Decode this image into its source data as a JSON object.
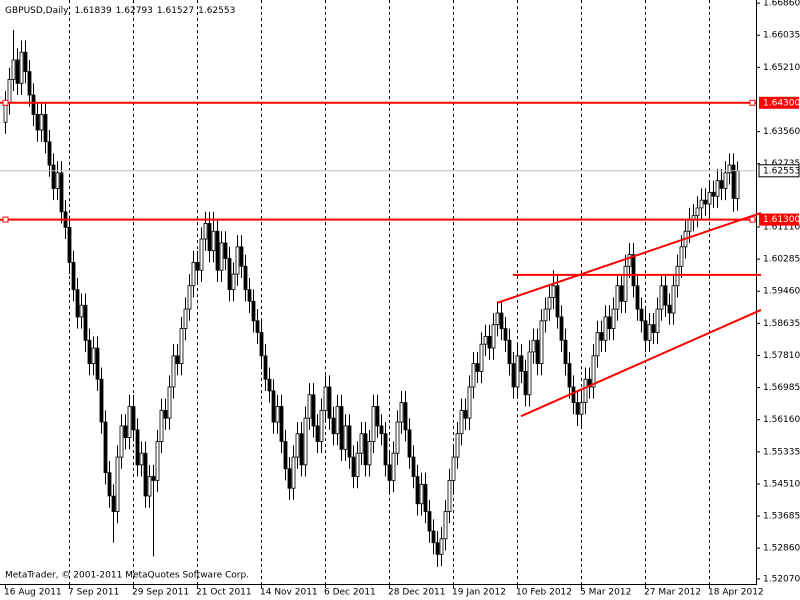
{
  "chart_data": {
    "type": "candlestick",
    "symbol": "GBPUSD,Daily",
    "footer": "MetaTrader, © 2001-2011 MetaQuotes Software Corp.",
    "categories": [
      "16 Aug 2011",
      null,
      null,
      null,
      null,
      null,
      null,
      null,
      null,
      null,
      null,
      null,
      null,
      null,
      null,
      null,
      "7 Sep 2011",
      null,
      null,
      null,
      null,
      null,
      null,
      null,
      null,
      null,
      null,
      null,
      null,
      null,
      null,
      null,
      "29 Sep 2011",
      null,
      null,
      null,
      null,
      null,
      null,
      null,
      null,
      null,
      null,
      null,
      null,
      null,
      null,
      null,
      "21 Oct 2011",
      null,
      null,
      null,
      null,
      null,
      null,
      null,
      null,
      null,
      null,
      null,
      null,
      null,
      null,
      null,
      "14 Nov 2011",
      null,
      null,
      null,
      null,
      null,
      null,
      null,
      null,
      null,
      null,
      null,
      null,
      null,
      null,
      null,
      "6 Dec 2011",
      null,
      null,
      null,
      null,
      null,
      null,
      null,
      null,
      null,
      null,
      null,
      null,
      null,
      null,
      null,
      "28 Dec 2011",
      null,
      null,
      null,
      null,
      null,
      null,
      null,
      null,
      null,
      null,
      null,
      null,
      null,
      null,
      null,
      "19 Jan 2012",
      null,
      null,
      null,
      null,
      null,
      null,
      null,
      null,
      null,
      null,
      null,
      null,
      null,
      null,
      null,
      "10 Feb 2012",
      null,
      null,
      null,
      null,
      null,
      null,
      null,
      null,
      null,
      null,
      null,
      null,
      null,
      null,
      null,
      "5 Mar 2012",
      null,
      null,
      null,
      null,
      null,
      null,
      null,
      null,
      null,
      null,
      null,
      null,
      null,
      null,
      null,
      "27 Mar 2012",
      null,
      null,
      null,
      null,
      null,
      null,
      null,
      null,
      null,
      null,
      null,
      null,
      null,
      null,
      null,
      "18 Apr 2012",
      null,
      null,
      null,
      null,
      null,
      null,
      null
    ],
    "candles": [
      [
        1.638,
        1.646,
        1.635,
        1.643
      ],
      [
        1.643,
        1.652,
        1.64,
        1.649
      ],
      [
        1.649,
        1.6617,
        1.646,
        1.654
      ],
      [
        1.654,
        1.657,
        1.645,
        1.648
      ],
      [
        1.648,
        1.659,
        1.645,
        1.656
      ],
      [
        1.656,
        1.659,
        1.648,
        1.651
      ],
      [
        1.651,
        1.654,
        1.642,
        1.645
      ],
      [
        1.645,
        1.648,
        1.637,
        1.64
      ],
      [
        1.64,
        1.643,
        1.633,
        1.636
      ],
      [
        1.636,
        1.643,
        1.633,
        1.64
      ],
      [
        1.64,
        1.643,
        1.63,
        1.633
      ],
      [
        1.633,
        1.636,
        1.624,
        1.627
      ],
      [
        1.627,
        1.63,
        1.618,
        1.621
      ],
      [
        1.621,
        1.628,
        1.618,
        1.625
      ],
      [
        1.625,
        1.628,
        1.612,
        1.615
      ],
      [
        1.615,
        1.618,
        1.608,
        1.611
      ],
      [
        1.611,
        1.614,
        1.599,
        1.602
      ],
      [
        1.602,
        1.605,
        1.592,
        1.595
      ],
      [
        1.595,
        1.598,
        1.585,
        1.588
      ],
      [
        1.588,
        1.594,
        1.585,
        1.591
      ],
      [
        1.591,
        1.594,
        1.579,
        1.582
      ],
      [
        1.582,
        1.585,
        1.573,
        1.576
      ],
      [
        1.576,
        1.583,
        1.573,
        1.58
      ],
      [
        1.58,
        1.583,
        1.569,
        1.572
      ],
      [
        1.572,
        1.575,
        1.558,
        1.561
      ],
      [
        1.561,
        1.564,
        1.545,
        1.548
      ],
      [
        1.548,
        1.551,
        1.539,
        1.542
      ],
      [
        1.542,
        1.545,
        1.53,
        1.538
      ],
      [
        1.538,
        1.555,
        1.535,
        1.552
      ],
      [
        1.552,
        1.563,
        1.549,
        1.56
      ],
      [
        1.56,
        1.563,
        1.554,
        1.557
      ],
      [
        1.557,
        1.568,
        1.554,
        1.565
      ],
      [
        1.565,
        1.568,
        1.556,
        1.559
      ],
      [
        1.559,
        1.562,
        1.547,
        1.55
      ],
      [
        1.55,
        1.556,
        1.547,
        1.553
      ],
      [
        1.553,
        1.556,
        1.539,
        1.542
      ],
      [
        1.542,
        1.55,
        1.539,
        1.547
      ],
      [
        1.547,
        1.55,
        1.5265,
        1.546
      ],
      [
        1.546,
        1.559,
        1.543,
        1.556
      ],
      [
        1.556,
        1.567,
        1.553,
        1.564
      ],
      [
        1.564,
        1.567,
        1.559,
        1.562
      ],
      [
        1.562,
        1.573,
        1.559,
        1.57
      ],
      [
        1.57,
        1.581,
        1.567,
        1.578
      ],
      [
        1.578,
        1.581,
        1.573,
        1.576
      ],
      [
        1.576,
        1.588,
        1.573,
        1.585
      ],
      [
        1.585,
        1.593,
        1.582,
        1.59
      ],
      [
        1.59,
        1.599,
        1.587,
        1.596
      ],
      [
        1.596,
        1.605,
        1.593,
        1.602
      ],
      [
        1.602,
        1.605,
        1.597,
        1.6
      ],
      [
        1.6,
        1.611,
        1.597,
        1.608
      ],
      [
        1.608,
        1.615,
        1.605,
        1.612
      ],
      [
        1.612,
        1.615,
        1.602,
        1.605
      ],
      [
        1.605,
        1.615,
        1.602,
        1.61
      ],
      [
        1.61,
        1.613,
        1.597,
        1.6
      ],
      [
        1.6,
        1.61,
        1.597,
        1.607
      ],
      [
        1.607,
        1.61,
        1.6,
        1.603
      ],
      [
        1.603,
        1.606,
        1.592,
        1.595
      ],
      [
        1.595,
        1.602,
        1.592,
        1.599
      ],
      [
        1.599,
        1.609,
        1.596,
        1.606
      ],
      [
        1.606,
        1.609,
        1.598,
        1.601
      ],
      [
        1.601,
        1.604,
        1.592,
        1.595
      ],
      [
        1.595,
        1.598,
        1.589,
        1.592
      ],
      [
        1.592,
        1.595,
        1.584,
        1.587
      ],
      [
        1.587,
        1.59,
        1.581,
        1.584
      ],
      [
        1.584,
        1.587,
        1.575,
        1.578
      ],
      [
        1.578,
        1.581,
        1.569,
        1.572
      ],
      [
        1.572,
        1.575,
        1.566,
        1.569
      ],
      [
        1.569,
        1.572,
        1.558,
        1.561
      ],
      [
        1.561,
        1.568,
        1.558,
        1.565
      ],
      [
        1.565,
        1.568,
        1.553,
        1.556
      ],
      [
        1.556,
        1.559,
        1.546,
        1.549
      ],
      [
        1.549,
        1.552,
        1.541,
        1.544
      ],
      [
        1.544,
        1.555,
        1.541,
        1.552
      ],
      [
        1.552,
        1.561,
        1.549,
        1.558
      ],
      [
        1.558,
        1.561,
        1.547,
        1.55
      ],
      [
        1.55,
        1.565,
        1.547,
        1.562
      ],
      [
        1.562,
        1.571,
        1.559,
        1.568
      ],
      [
        1.568,
        1.571,
        1.557,
        1.56
      ],
      [
        1.56,
        1.563,
        1.553,
        1.556
      ],
      [
        1.556,
        1.567,
        1.553,
        1.564
      ],
      [
        1.564,
        1.573,
        1.561,
        1.57
      ],
      [
        1.57,
        1.573,
        1.559,
        1.562
      ],
      [
        1.562,
        1.565,
        1.555,
        1.558
      ],
      [
        1.558,
        1.568,
        1.555,
        1.565
      ],
      [
        1.565,
        1.568,
        1.551,
        1.554
      ],
      [
        1.554,
        1.563,
        1.551,
        1.56
      ],
      [
        1.56,
        1.563,
        1.549,
        1.552
      ],
      [
        1.552,
        1.555,
        1.544,
        1.547
      ],
      [
        1.547,
        1.556,
        1.544,
        1.553
      ],
      [
        1.553,
        1.561,
        1.55,
        1.558
      ],
      [
        1.558,
        1.561,
        1.547,
        1.55
      ],
      [
        1.55,
        1.559,
        1.547,
        1.556
      ],
      [
        1.556,
        1.568,
        1.553,
        1.565
      ],
      [
        1.565,
        1.568,
        1.557,
        1.56
      ],
      [
        1.56,
        1.563,
        1.555,
        1.558
      ],
      [
        1.558,
        1.561,
        1.547,
        1.55
      ],
      [
        1.55,
        1.553,
        1.543,
        1.546
      ],
      [
        1.546,
        1.556,
        1.543,
        1.553
      ],
      [
        1.553,
        1.564,
        1.55,
        1.561
      ],
      [
        1.561,
        1.569,
        1.558,
        1.566
      ],
      [
        1.566,
        1.569,
        1.556,
        1.559
      ],
      [
        1.559,
        1.562,
        1.549,
        1.552
      ],
      [
        1.552,
        1.555,
        1.544,
        1.547
      ],
      [
        1.547,
        1.55,
        1.537,
        1.54
      ],
      [
        1.54,
        1.548,
        1.537,
        1.545
      ],
      [
        1.545,
        1.548,
        1.535,
        1.538
      ],
      [
        1.538,
        1.541,
        1.53,
        1.533
      ],
      [
        1.533,
        1.536,
        1.527,
        1.53
      ],
      [
        1.53,
        1.533,
        1.5238,
        1.527
      ],
      [
        1.527,
        1.534,
        1.524,
        1.531
      ],
      [
        1.531,
        1.541,
        1.528,
        1.538
      ],
      [
        1.538,
        1.549,
        1.535,
        1.546
      ],
      [
        1.546,
        1.555,
        1.543,
        1.552
      ],
      [
        1.552,
        1.561,
        1.549,
        1.558
      ],
      [
        1.558,
        1.567,
        1.555,
        1.564
      ],
      [
        1.564,
        1.567,
        1.559,
        1.562
      ],
      [
        1.562,
        1.573,
        1.559,
        1.57
      ],
      [
        1.57,
        1.579,
        1.567,
        1.576
      ],
      [
        1.576,
        1.579,
        1.571,
        1.574
      ],
      [
        1.574,
        1.584,
        1.571,
        1.581
      ],
      [
        1.581,
        1.586,
        1.578,
        1.583
      ],
      [
        1.583,
        1.586,
        1.577,
        1.58
      ],
      [
        1.58,
        1.589,
        1.577,
        1.586
      ],
      [
        1.586,
        1.592,
        1.583,
        1.589
      ],
      [
        1.589,
        1.592,
        1.582,
        1.585
      ],
      [
        1.585,
        1.588,
        1.579,
        1.582
      ],
      [
        1.582,
        1.585,
        1.573,
        1.576
      ],
      [
        1.576,
        1.579,
        1.567,
        1.57
      ],
      [
        1.57,
        1.581,
        1.567,
        1.578
      ],
      [
        1.578,
        1.581,
        1.571,
        1.574
      ],
      [
        1.574,
        1.577,
        1.565,
        1.568
      ],
      [
        1.568,
        1.582,
        1.565,
        1.579
      ],
      [
        1.579,
        1.585,
        1.576,
        1.582
      ],
      [
        1.582,
        1.585,
        1.573,
        1.576
      ],
      [
        1.576,
        1.59,
        1.573,
        1.587
      ],
      [
        1.587,
        1.593,
        1.584,
        1.59
      ],
      [
        1.59,
        1.596,
        1.587,
        1.593
      ],
      [
        1.593,
        1.6,
        1.59,
        1.596
      ],
      [
        1.596,
        1.599,
        1.585,
        1.588
      ],
      [
        1.588,
        1.591,
        1.579,
        1.582
      ],
      [
        1.582,
        1.585,
        1.573,
        1.576
      ],
      [
        1.576,
        1.579,
        1.567,
        1.57
      ],
      [
        1.57,
        1.573,
        1.563,
        1.566
      ],
      [
        1.566,
        1.569,
        1.56,
        1.563
      ],
      [
        1.563,
        1.569,
        1.56,
        1.566
      ],
      [
        1.566,
        1.575,
        1.563,
        1.572
      ],
      [
        1.572,
        1.575,
        1.567,
        1.57
      ],
      [
        1.57,
        1.581,
        1.567,
        1.578
      ],
      [
        1.578,
        1.587,
        1.575,
        1.584
      ],
      [
        1.584,
        1.587,
        1.579,
        1.582
      ],
      [
        1.582,
        1.591,
        1.579,
        1.588
      ],
      [
        1.588,
        1.591,
        1.582,
        1.585
      ],
      [
        1.585,
        1.593,
        1.582,
        1.59
      ],
      [
        1.59,
        1.599,
        1.587,
        1.596
      ],
      [
        1.596,
        1.599,
        1.589,
        1.592
      ],
      [
        1.592,
        1.604,
        1.589,
        1.601
      ],
      [
        1.601,
        1.607,
        1.598,
        1.604
      ],
      [
        1.604,
        1.607,
        1.593,
        1.596
      ],
      [
        1.596,
        1.599,
        1.587,
        1.59
      ],
      [
        1.59,
        1.593,
        1.584,
        1.587
      ],
      [
        1.587,
        1.59,
        1.579,
        1.582
      ],
      [
        1.582,
        1.589,
        1.579,
        1.586
      ],
      [
        1.586,
        1.589,
        1.581,
        1.584
      ],
      [
        1.584,
        1.593,
        1.581,
        1.59
      ],
      [
        1.59,
        1.599,
        1.587,
        1.596
      ],
      [
        1.596,
        1.599,
        1.588,
        1.591
      ],
      [
        1.591,
        1.594,
        1.586,
        1.589
      ],
      [
        1.589,
        1.599,
        1.586,
        1.596
      ],
      [
        1.596,
        1.604,
        1.593,
        1.601
      ],
      [
        1.601,
        1.609,
        1.598,
        1.606
      ],
      [
        1.606,
        1.613,
        1.603,
        1.61
      ],
      [
        1.61,
        1.616,
        1.607,
        1.613
      ],
      [
        1.613,
        1.617,
        1.61,
        1.614
      ],
      [
        1.614,
        1.619,
        1.611,
        1.616
      ],
      [
        1.616,
        1.621,
        1.613,
        1.618
      ],
      [
        1.618,
        1.621,
        1.614,
        1.617
      ],
      [
        1.617,
        1.623,
        1.614,
        1.62
      ],
      [
        1.62,
        1.623,
        1.616,
        1.619
      ],
      [
        1.619,
        1.626,
        1.616,
        1.623
      ],
      [
        1.623,
        1.626,
        1.618,
        1.621
      ],
      [
        1.621,
        1.628,
        1.618,
        1.625
      ],
      [
        1.625,
        1.63,
        1.622,
        1.627
      ],
      [
        1.627,
        1.63,
        1.615,
        1.6184
      ],
      [
        1.61839,
        1.62793,
        1.61527,
        1.62553
      ]
    ],
    "ylim": [
      1.5194,
      1.6694
    ],
    "yticks": [
      {
        "value": 1.6686,
        "label": "1.66860"
      },
      {
        "value": 1.66035,
        "label": "1.66035"
      },
      {
        "value": 1.6521,
        "label": "1.65210"
      },
      {
        "value": 1.6356,
        "label": "1.63560"
      },
      {
        "value": 1.62735,
        "label": "1.62735"
      },
      {
        "value": 1.6111,
        "label": "1.61110"
      },
      {
        "value": 1.60285,
        "label": "1.60285"
      },
      {
        "value": 1.5946,
        "label": "1.59460"
      },
      {
        "value": 1.58635,
        "label": "1.58635"
      },
      {
        "value": 1.5781,
        "label": "1.57810"
      },
      {
        "value": 1.56985,
        "label": "1.56985"
      },
      {
        "value": 1.5616,
        "label": "1.56160"
      },
      {
        "value": 1.55335,
        "label": "1.55335"
      },
      {
        "value": 1.5451,
        "label": "1.54510"
      },
      {
        "value": 1.53685,
        "label": "1.53685"
      },
      {
        "value": 1.5286,
        "label": "1.52860"
      },
      {
        "value": 1.5207,
        "label": "1.52070"
      }
    ],
    "levels": [
      {
        "value": 1.643,
        "label": "1.64300",
        "color": "#ff0000"
      },
      {
        "value": 1.613,
        "label": "1.61300",
        "color": "#ff0000"
      }
    ],
    "trendlines": [
      {
        "points": [
          [
            127,
            1.5988
          ],
          [
            189,
            1.5988
          ]
        ],
        "color": "#ff0000"
      },
      {
        "points": [
          [
            123,
            1.5916
          ],
          [
            189,
            1.6147
          ]
        ],
        "color": "#ff0000"
      },
      {
        "points": [
          [
            129,
            1.5625
          ],
          [
            189,
            1.5898
          ]
        ],
        "color": "#ff0000"
      }
    ],
    "xgrid": true,
    "ygrid": false
  }
}
